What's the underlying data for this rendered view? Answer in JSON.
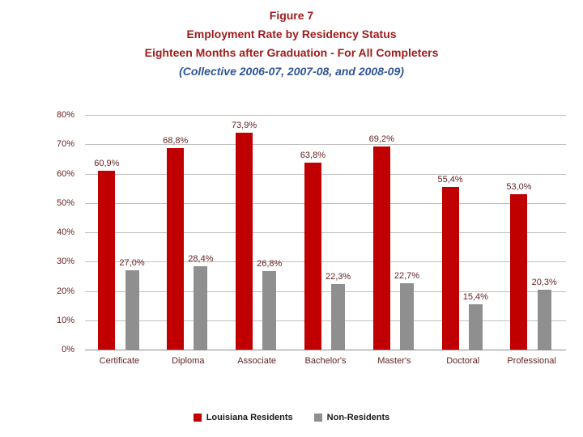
{
  "title": {
    "line1": "Figure 7",
    "line2": "Employment Rate by Residency Status",
    "line3": "Eighteen Months after Graduation - For All Completers",
    "line4": "(Collective 2006-07, 2007-08, and 2008-09)"
  },
  "legend": {
    "residents": "Louisiana Residents",
    "non_residents": "Non-Residents"
  },
  "colors": {
    "residents": "#c00000",
    "non_residents": "#8f8f8f",
    "title_red": "#9e1b1b",
    "subtitle_blue": "#2f5496",
    "axis_text": "#632423",
    "gridline": "#bfbfbf"
  },
  "chart_data": {
    "type": "bar",
    "title": "Figure 7 - Employment Rate by Residency Status, Eighteen Months after Graduation - For All Completers (Collective 2006-07, 2007-08, and 2008-09)",
    "categories": [
      "Certificate",
      "Diploma",
      "Associate",
      "Bachelor's",
      "Master's",
      "Doctoral",
      "Professional"
    ],
    "series": [
      {
        "name": "Louisiana Residents",
        "values": [
          60.9,
          68.8,
          73.9,
          63.8,
          69.2,
          55.4,
          53.0
        ],
        "labels": [
          "60,9%",
          "68,8%",
          "73,9%",
          "63,8%",
          "69,2%",
          "55,4%",
          "53,0%"
        ]
      },
      {
        "name": "Non-Residents",
        "values": [
          27.0,
          28.4,
          26.8,
          22.3,
          22.7,
          15.4,
          20.3
        ],
        "labels": [
          "27,0%",
          "28,4%",
          "26,8%",
          "22,3%",
          "22,7%",
          "15,4%",
          "20,3%"
        ]
      }
    ],
    "xlabel": "",
    "ylabel": "",
    "ylim": [
      0,
      80
    ],
    "y_ticks": [
      "0%",
      "10%",
      "20%",
      "30%",
      "40%",
      "50%",
      "60%",
      "70%",
      "80%"
    ],
    "grid": true,
    "legend_position": "bottom"
  }
}
